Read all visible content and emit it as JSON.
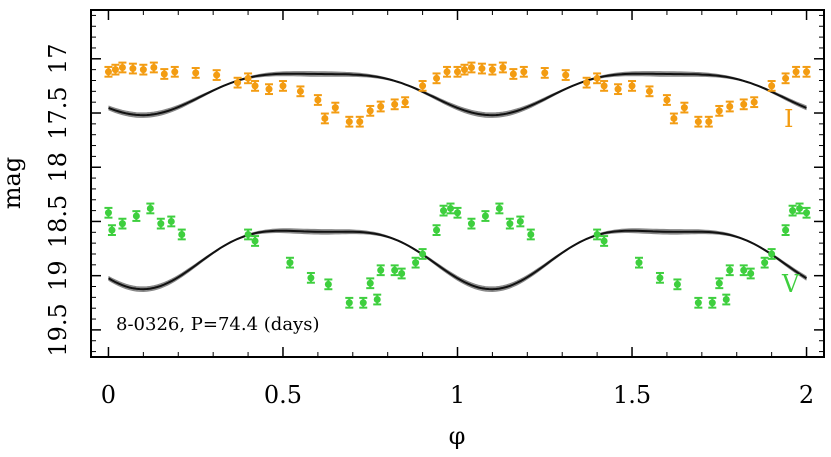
{
  "chart_data": {
    "type": "scatter",
    "xlabel": "φ",
    "ylabel": "mag",
    "xlim": [
      -0.05,
      2.05
    ],
    "ylim": [
      19.75,
      16.55
    ],
    "y_inverted": true,
    "xticks": [
      0,
      0.5,
      1,
      1.5,
      2
    ],
    "xtick_labels": [
      "0",
      "0.5",
      "1",
      "1.5",
      "2"
    ],
    "yticks": [
      17,
      17.5,
      18,
      18.5,
      19,
      19.5
    ],
    "ytick_labels": [
      "17",
      "17.5",
      "18",
      "18.5",
      "19",
      "19.5"
    ],
    "annotation": "8-0326, P=74.4 (days)",
    "period_days": 74.4,
    "series": [
      {
        "name": "I",
        "label": "I",
        "color": "#f39c12",
        "fit": {
          "mean": 17.28,
          "amp1": 0.19,
          "phase1": 0.095,
          "amp2": 0.05,
          "phase2": 0.2
        },
        "points": [
          {
            "x": 0.0,
            "y": 17.12
          },
          {
            "x": 0.02,
            "y": 17.1
          },
          {
            "x": 0.04,
            "y": 17.08
          },
          {
            "x": 0.07,
            "y": 17.09
          },
          {
            "x": 0.1,
            "y": 17.1
          },
          {
            "x": 0.13,
            "y": 17.08
          },
          {
            "x": 0.16,
            "y": 17.14
          },
          {
            "x": 0.19,
            "y": 17.12
          },
          {
            "x": 0.25,
            "y": 17.13
          },
          {
            "x": 0.31,
            "y": 17.15
          },
          {
            "x": 0.37,
            "y": 17.22
          },
          {
            "x": 0.4,
            "y": 17.18
          },
          {
            "x": 0.42,
            "y": 17.25
          },
          {
            "x": 0.46,
            "y": 17.28
          },
          {
            "x": 0.5,
            "y": 17.25
          },
          {
            "x": 0.55,
            "y": 17.3
          },
          {
            "x": 0.6,
            "y": 17.38
          },
          {
            "x": 0.62,
            "y": 17.55
          },
          {
            "x": 0.65,
            "y": 17.45
          },
          {
            "x": 0.69,
            "y": 17.58
          },
          {
            "x": 0.72,
            "y": 17.58
          },
          {
            "x": 0.75,
            "y": 17.48
          },
          {
            "x": 0.78,
            "y": 17.44
          },
          {
            "x": 0.82,
            "y": 17.42
          },
          {
            "x": 0.85,
            "y": 17.4
          },
          {
            "x": 0.9,
            "y": 17.25
          },
          {
            "x": 0.94,
            "y": 17.18
          },
          {
            "x": 0.97,
            "y": 17.12
          },
          {
            "x": 1.0,
            "y": 17.12
          },
          {
            "x": 1.02,
            "y": 17.1
          },
          {
            "x": 1.04,
            "y": 17.08
          },
          {
            "x": 1.07,
            "y": 17.09
          },
          {
            "x": 1.1,
            "y": 17.1
          },
          {
            "x": 1.13,
            "y": 17.08
          },
          {
            "x": 1.16,
            "y": 17.14
          },
          {
            "x": 1.19,
            "y": 17.12
          },
          {
            "x": 1.25,
            "y": 17.13
          },
          {
            "x": 1.31,
            "y": 17.15
          },
          {
            "x": 1.37,
            "y": 17.22
          },
          {
            "x": 1.4,
            "y": 17.18
          },
          {
            "x": 1.42,
            "y": 17.25
          },
          {
            "x": 1.46,
            "y": 17.28
          },
          {
            "x": 1.5,
            "y": 17.25
          },
          {
            "x": 1.55,
            "y": 17.3
          },
          {
            "x": 1.6,
            "y": 17.38
          },
          {
            "x": 1.62,
            "y": 17.55
          },
          {
            "x": 1.65,
            "y": 17.45
          },
          {
            "x": 1.69,
            "y": 17.58
          },
          {
            "x": 1.72,
            "y": 17.58
          },
          {
            "x": 1.75,
            "y": 17.48
          },
          {
            "x": 1.78,
            "y": 17.44
          },
          {
            "x": 1.82,
            "y": 17.42
          },
          {
            "x": 1.85,
            "y": 17.4
          },
          {
            "x": 1.9,
            "y": 17.25
          },
          {
            "x": 1.94,
            "y": 17.18
          },
          {
            "x": 1.97,
            "y": 17.12
          },
          {
            "x": 2.0,
            "y": 17.12
          }
        ]
      },
      {
        "name": "V",
        "label": "V",
        "color": "#3ecf3e",
        "fit": {
          "mean": 18.78,
          "amp1": 0.265,
          "phase1": 0.095,
          "amp2": 0.08,
          "phase2": 0.2
        },
        "points": [
          {
            "x": 0.0,
            "y": 18.42
          },
          {
            "x": 0.01,
            "y": 18.58
          },
          {
            "x": 0.04,
            "y": 18.52
          },
          {
            "x": 0.08,
            "y": 18.45
          },
          {
            "x": 0.12,
            "y": 18.38
          },
          {
            "x": 0.15,
            "y": 18.52
          },
          {
            "x": 0.18,
            "y": 18.5
          },
          {
            "x": 0.21,
            "y": 18.62
          },
          {
            "x": 0.4,
            "y": 18.62
          },
          {
            "x": 0.42,
            "y": 18.68
          },
          {
            "x": 0.52,
            "y": 18.88
          },
          {
            "x": 0.58,
            "y": 19.02
          },
          {
            "x": 0.63,
            "y": 19.08
          },
          {
            "x": 0.69,
            "y": 19.25
          },
          {
            "x": 0.73,
            "y": 19.25
          },
          {
            "x": 0.75,
            "y": 19.07
          },
          {
            "x": 0.77,
            "y": 19.22
          },
          {
            "x": 0.78,
            "y": 18.95
          },
          {
            "x": 0.82,
            "y": 18.95
          },
          {
            "x": 0.84,
            "y": 18.98
          },
          {
            "x": 0.88,
            "y": 18.88
          },
          {
            "x": 0.9,
            "y": 18.8
          },
          {
            "x": 0.94,
            "y": 18.58
          },
          {
            "x": 0.96,
            "y": 18.4
          },
          {
            "x": 0.98,
            "y": 18.38
          },
          {
            "x": 1.0,
            "y": 18.42
          },
          {
            "x": 1.04,
            "y": 18.52
          },
          {
            "x": 1.08,
            "y": 18.45
          },
          {
            "x": 1.12,
            "y": 18.38
          },
          {
            "x": 1.15,
            "y": 18.52
          },
          {
            "x": 1.18,
            "y": 18.5
          },
          {
            "x": 1.21,
            "y": 18.62
          },
          {
            "x": 1.4,
            "y": 18.62
          },
          {
            "x": 1.42,
            "y": 18.68
          },
          {
            "x": 1.52,
            "y": 18.88
          },
          {
            "x": 1.58,
            "y": 19.02
          },
          {
            "x": 1.63,
            "y": 19.08
          },
          {
            "x": 1.69,
            "y": 19.25
          },
          {
            "x": 1.73,
            "y": 19.25
          },
          {
            "x": 1.75,
            "y": 19.07
          },
          {
            "x": 1.77,
            "y": 19.22
          },
          {
            "x": 1.78,
            "y": 18.95
          },
          {
            "x": 1.82,
            "y": 18.95
          },
          {
            "x": 1.84,
            "y": 18.98
          },
          {
            "x": 1.88,
            "y": 18.88
          },
          {
            "x": 1.9,
            "y": 18.8
          },
          {
            "x": 1.94,
            "y": 18.58
          },
          {
            "x": 1.96,
            "y": 18.4
          },
          {
            "x": 1.98,
            "y": 18.38
          },
          {
            "x": 2.0,
            "y": 18.42
          }
        ]
      }
    ]
  }
}
